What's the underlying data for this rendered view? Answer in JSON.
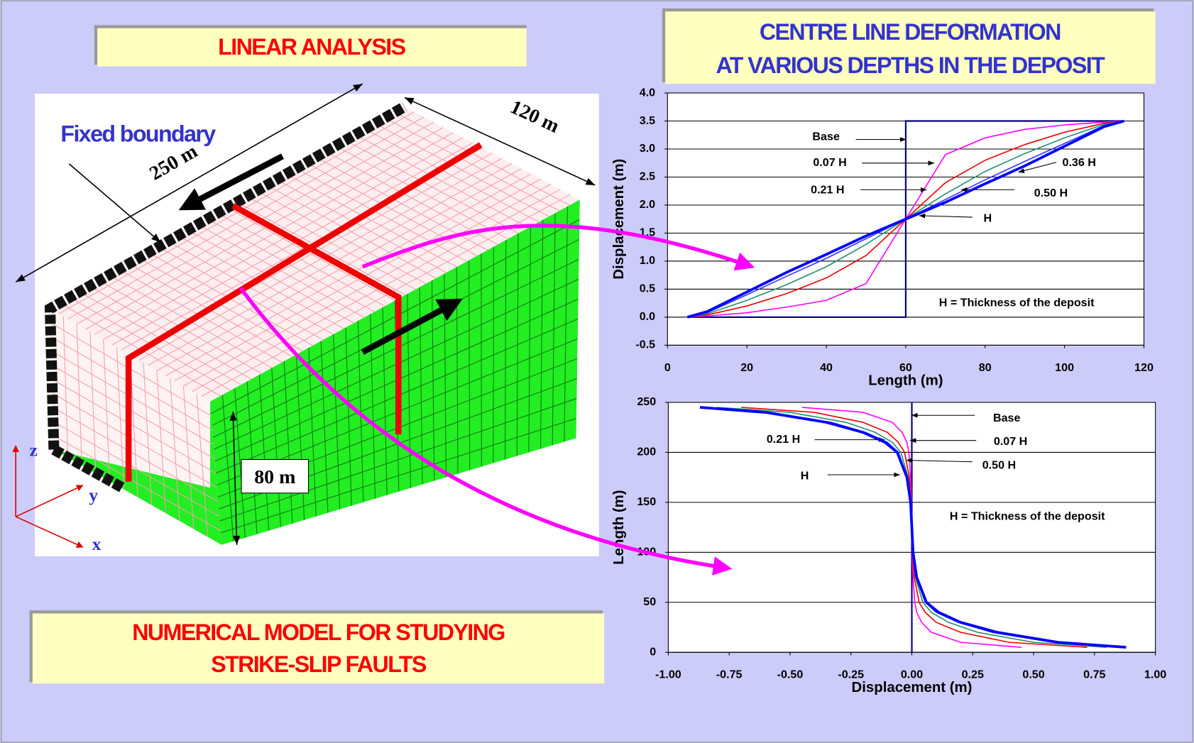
{
  "slide": {
    "left_title": "LINEAR ANALYSIS",
    "charts_title": [
      "CENTRE LINE DEFORMATION",
      "AT VARIOUS DEPTHS IN THE DEPOSIT"
    ],
    "caption": [
      "NUMERICAL MODEL FOR STUDYING",
      "STRIKE-SLIP FAULTS"
    ],
    "diagram": {
      "boundary_label": "Fixed boundary",
      "length_label": "250 m",
      "width_label": "120 m",
      "height_label": "80 m",
      "axis_z": "z",
      "axis_y": "y",
      "axis_x": "x"
    }
  },
  "chart_data": [
    {
      "type": "line",
      "x_label": "Length (m)",
      "y_label": "Displacement (m)",
      "note": "H = Thickness of the deposit",
      "xlim": [
        0,
        120
      ],
      "xticks": [
        0,
        20,
        40,
        60,
        80,
        100,
        120
      ],
      "ylim": [
        -0.5,
        4.0
      ],
      "yticks": [
        -0.5,
        {
          "value": 0,
          "label": "0.0"
        },
        0.5,
        {
          "value": 1,
          "label": "1.0"
        },
        1.5,
        {
          "value": 2,
          "label": "2.0"
        },
        2.5,
        {
          "value": 3,
          "label": "3.0"
        },
        3.5,
        {
          "value": 4,
          "label": "4.0"
        }
      ],
      "grid": true,
      "series": [
        {
          "name": "Base",
          "color": "#000080",
          "x": [
            5,
            60,
            60,
            115
          ],
          "y": [
            0,
            0,
            3.5,
            3.5
          ]
        },
        {
          "name": "0.07 H",
          "color": "#ff00ff",
          "x": [
            5,
            10,
            20,
            30,
            40,
            50,
            60,
            70,
            80,
            90,
            100,
            110,
            115
          ],
          "y": [
            0,
            0.02,
            0.08,
            0.18,
            0.3,
            0.6,
            1.75,
            2.9,
            3.2,
            3.35,
            3.43,
            3.48,
            3.5
          ]
        },
        {
          "name": "0.21 H",
          "color": "#ee0000",
          "x": [
            5,
            10,
            20,
            30,
            40,
            50,
            60,
            70,
            80,
            90,
            100,
            110,
            115
          ],
          "y": [
            0,
            0.04,
            0.2,
            0.42,
            0.7,
            1.1,
            1.75,
            2.4,
            2.8,
            3.08,
            3.3,
            3.46,
            3.5
          ]
        },
        {
          "name": "0.36 H",
          "color": "#209070",
          "x": [
            5,
            10,
            20,
            30,
            40,
            50,
            60,
            70,
            80,
            90,
            100,
            110,
            115
          ],
          "y": [
            0,
            0.06,
            0.3,
            0.58,
            0.9,
            1.3,
            1.75,
            2.2,
            2.6,
            2.92,
            3.2,
            3.44,
            3.5
          ]
        },
        {
          "name": "0.50 H",
          "color": "#3333ff",
          "x": [
            5,
            10,
            20,
            30,
            40,
            50,
            60,
            70,
            80,
            90,
            100,
            110,
            115
          ],
          "y": [
            0,
            0.08,
            0.4,
            0.73,
            1.05,
            1.4,
            1.75,
            2.1,
            2.45,
            2.78,
            3.1,
            3.42,
            3.5
          ]
        },
        {
          "name": "H",
          "color": "#0000ff",
          "x": [
            5,
            10,
            20,
            30,
            40,
            50,
            60,
            70,
            80,
            90,
            100,
            110,
            115
          ],
          "y": [
            0,
            0.1,
            0.45,
            0.8,
            1.12,
            1.45,
            1.75,
            2.05,
            2.38,
            2.7,
            3.05,
            3.4,
            3.5
          ]
        }
      ]
    },
    {
      "type": "line",
      "x_label": "Displacement (m)",
      "y_label": "Length (m)",
      "note": "H = Thickness of the deposit",
      "xlim": [
        -1,
        1
      ],
      "xticks": [
        {
          "value": -1,
          "label": "-1.00"
        },
        {
          "value": -0.75,
          "label": "-0.75"
        },
        {
          "value": -0.5,
          "label": "-0.50"
        },
        {
          "value": -0.25,
          "label": "-0.25"
        },
        {
          "value": 0,
          "label": "0.00"
        },
        {
          "value": 0.25,
          "label": "0.25"
        },
        {
          "value": 0.5,
          "label": "0.50"
        },
        {
          "value": 0.75,
          "label": "0.75"
        },
        {
          "value": 1,
          "label": "1.00"
        }
      ],
      "ylim": [
        0,
        250
      ],
      "yticks": [
        0,
        50,
        100,
        150,
        200,
        250
      ],
      "grid": true,
      "series": [
        {
          "name": "Base",
          "color": "#000080",
          "x": [
            0,
            0
          ],
          "y": [
            0,
            250
          ]
        },
        {
          "name": "0.07 H",
          "color": "#ff00ff",
          "x": [
            -0.45,
            -0.2,
            -0.08,
            -0.04,
            -0.02,
            -0.012,
            -0.005,
            -0.001,
            0,
            0.001,
            0.005,
            0.012,
            0.02,
            0.04,
            0.08,
            0.2,
            0.45
          ],
          "y": [
            245,
            240,
            230,
            220,
            210,
            200,
            175,
            150,
            125,
            100,
            75,
            50,
            40,
            30,
            20,
            10,
            5
          ]
        },
        {
          "name": "0.21 H",
          "color": "#ee0000",
          "x": [
            -0.7,
            -0.4,
            -0.2,
            -0.1,
            -0.055,
            -0.03,
            -0.01,
            -0.002,
            0,
            0.002,
            0.01,
            0.03,
            0.055,
            0.1,
            0.2,
            0.4,
            0.72
          ],
          "y": [
            245,
            240,
            230,
            220,
            210,
            200,
            175,
            150,
            125,
            100,
            75,
            50,
            40,
            30,
            20,
            10,
            5
          ]
        },
        {
          "color": "#209070",
          "x": [
            -0.8,
            -0.5,
            -0.27,
            -0.15,
            -0.08,
            -0.045,
            -0.015,
            -0.003,
            0,
            0.003,
            0.015,
            0.045,
            0.08,
            0.15,
            0.27,
            0.5,
            0.8
          ],
          "y": [
            245,
            240,
            230,
            220,
            210,
            200,
            175,
            150,
            125,
            100,
            75,
            50,
            40,
            30,
            20,
            10,
            5
          ]
        },
        {
          "name": "0.50 H",
          "color": "#3333ff",
          "x": [
            -0.85,
            -0.58,
            -0.33,
            -0.19,
            -0.1,
            -0.055,
            -0.018,
            -0.004,
            0,
            0.004,
            0.018,
            0.055,
            0.1,
            0.19,
            0.33,
            0.58,
            0.85
          ],
          "y": [
            245,
            240,
            230,
            220,
            210,
            200,
            175,
            150,
            125,
            100,
            75,
            50,
            40,
            30,
            20,
            10,
            5
          ]
        },
        {
          "name": "H",
          "color": "#0000ff",
          "x": [
            -0.87,
            -0.6,
            -0.35,
            -0.2,
            -0.11,
            -0.06,
            -0.02,
            -0.005,
            0,
            0.005,
            0.02,
            0.06,
            0.11,
            0.2,
            0.35,
            0.6,
            0.88
          ],
          "y": [
            245,
            240,
            230,
            220,
            210,
            200,
            175,
            150,
            125,
            100,
            75,
            50,
            40,
            30,
            20,
            10,
            5
          ]
        }
      ]
    }
  ]
}
